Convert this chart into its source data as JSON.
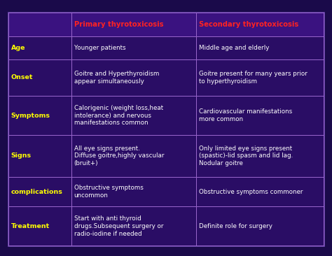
{
  "background_color": "#1a0a4a",
  "table_bg": "#2a0d65",
  "header_row_bg": "#3a1280",
  "border_color": "#9966cc",
  "header_color": "#ff2222",
  "row_label_color": "#ffff00",
  "cell_text_color": "#ffffff",
  "header_text": [
    "",
    "Primary thyrotoxicosis",
    "Secondary thyrotoxicosis"
  ],
  "rows": [
    {
      "label": "Age",
      "col1": "Younger patients",
      "col2": "Middle age and elderly"
    },
    {
      "label": "Onset",
      "col1": "Goitre and Hyperthyroidism\nappear simultaneously",
      "col2": "Goitre present for many years prior\nto hyperthyroidism"
    },
    {
      "label": "Symptoms",
      "col1": "Calorigenic (weight loss,heat\nintolerance) and nervous\nmanifestations common",
      "col2": "Cardiovascular manifestations\nmore common"
    },
    {
      "label": "Signs",
      "col1": "All eye signs present.\nDiffuse goitre,highly vascular\n(bruit+)",
      "col2": "Only limited eye signs present\n(spastic)-lid spasm and lid lag.\nNodular goitre"
    },
    {
      "label": "complications",
      "col1": "Obstructive symptoms\nuncommon",
      "col2": "Obstructive symptoms commoner"
    },
    {
      "label": "Treatment",
      "col1": "Start with anti thyroid\ndrugs.Subsequent surgery or\nradio-iodine if needed",
      "col2": "Definite role for surgery"
    }
  ],
  "figsize": [
    4.74,
    3.66
  ],
  "dpi": 100,
  "outer_border_color": "#6644aa",
  "outer_bg": "#1a0a4a"
}
